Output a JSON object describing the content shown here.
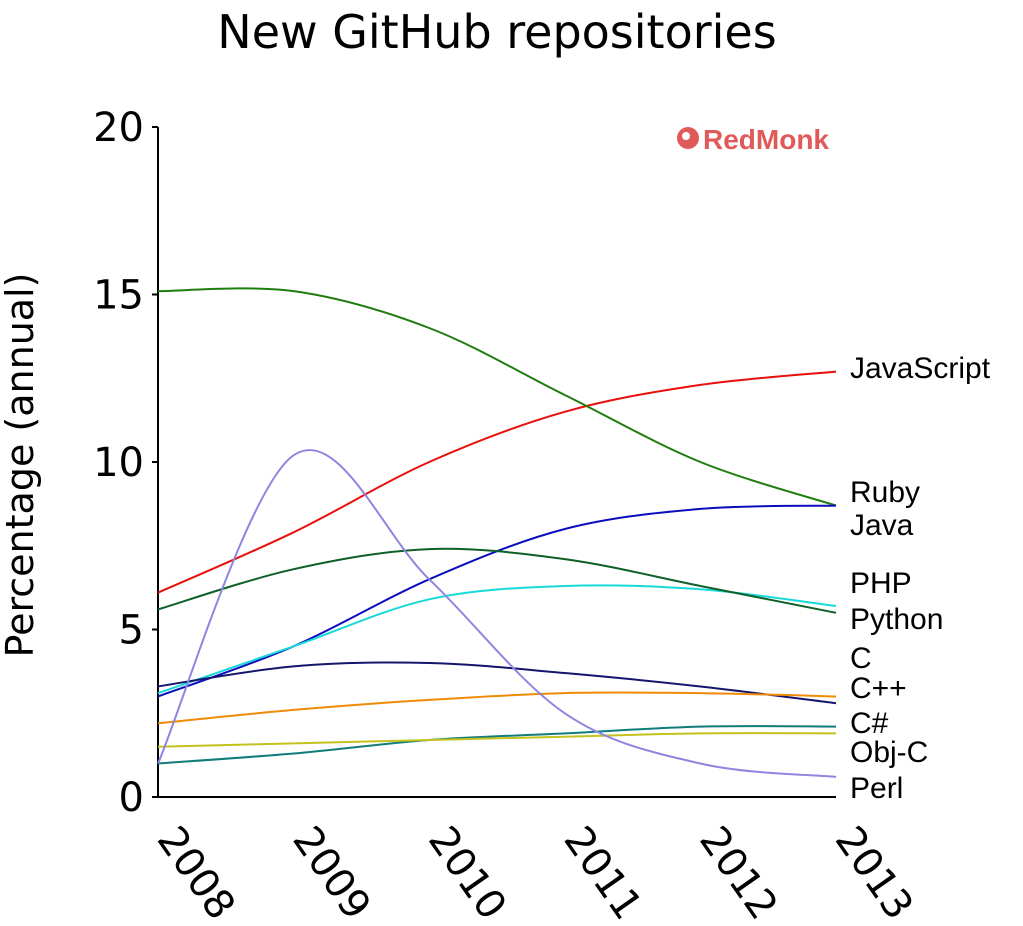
{
  "chart_data": {
    "type": "line",
    "title": "New GitHub repositories",
    "ylabel": "Percentage (annual)",
    "xlabel": "",
    "x": [
      2008,
      2009,
      2010,
      2011,
      2012,
      2013
    ],
    "xlim": [
      2008,
      2013
    ],
    "ylim": [
      0,
      20
    ],
    "yticks": [
      0,
      5,
      10,
      15,
      20
    ],
    "grid": false,
    "legend": "end-of-line labels",
    "brand": "RedMonk",
    "brand_color": "#e05a5a",
    "series": [
      {
        "name": "JavaScript",
        "color": "#e8100c",
        "values": [
          6.1,
          7.9,
          10.0,
          11.5,
          12.3,
          12.7
        ]
      },
      {
        "name": "Ruby",
        "color": "#1f7d0f",
        "values": [
          15.1,
          15.1,
          14.0,
          12.0,
          10.0,
          8.7
        ]
      },
      {
        "name": "Java",
        "color": "#0b0dbd",
        "values": [
          3.0,
          4.5,
          6.5,
          8.0,
          8.6,
          8.7
        ]
      },
      {
        "name": "PHP",
        "color": "#18d9d9",
        "values": [
          3.1,
          4.5,
          5.9,
          6.3,
          6.2,
          5.7
        ]
      },
      {
        "name": "Python",
        "color": "#0f6028",
        "values": [
          5.6,
          6.8,
          7.4,
          7.1,
          6.3,
          5.5
        ]
      },
      {
        "name": "C",
        "color": "#15156e",
        "values": [
          3.3,
          3.9,
          4.0,
          3.7,
          3.3,
          2.8
        ]
      },
      {
        "name": "C++",
        "color": "#f08a07",
        "values": [
          2.2,
          2.6,
          2.9,
          3.1,
          3.1,
          3.0
        ]
      },
      {
        "name": "C#",
        "color": "#117c7c",
        "values": [
          1.0,
          1.3,
          1.7,
          1.9,
          2.1,
          2.1
        ]
      },
      {
        "name": "Obj-C",
        "color": "#c4c21c",
        "values": [
          1.5,
          1.6,
          1.7,
          1.8,
          1.9,
          1.9
        ]
      },
      {
        "name": "Perl",
        "color": "#8e86e0",
        "values": [
          1.0,
          10.2,
          6.5,
          2.5,
          1.0,
          0.6
        ]
      }
    ]
  }
}
